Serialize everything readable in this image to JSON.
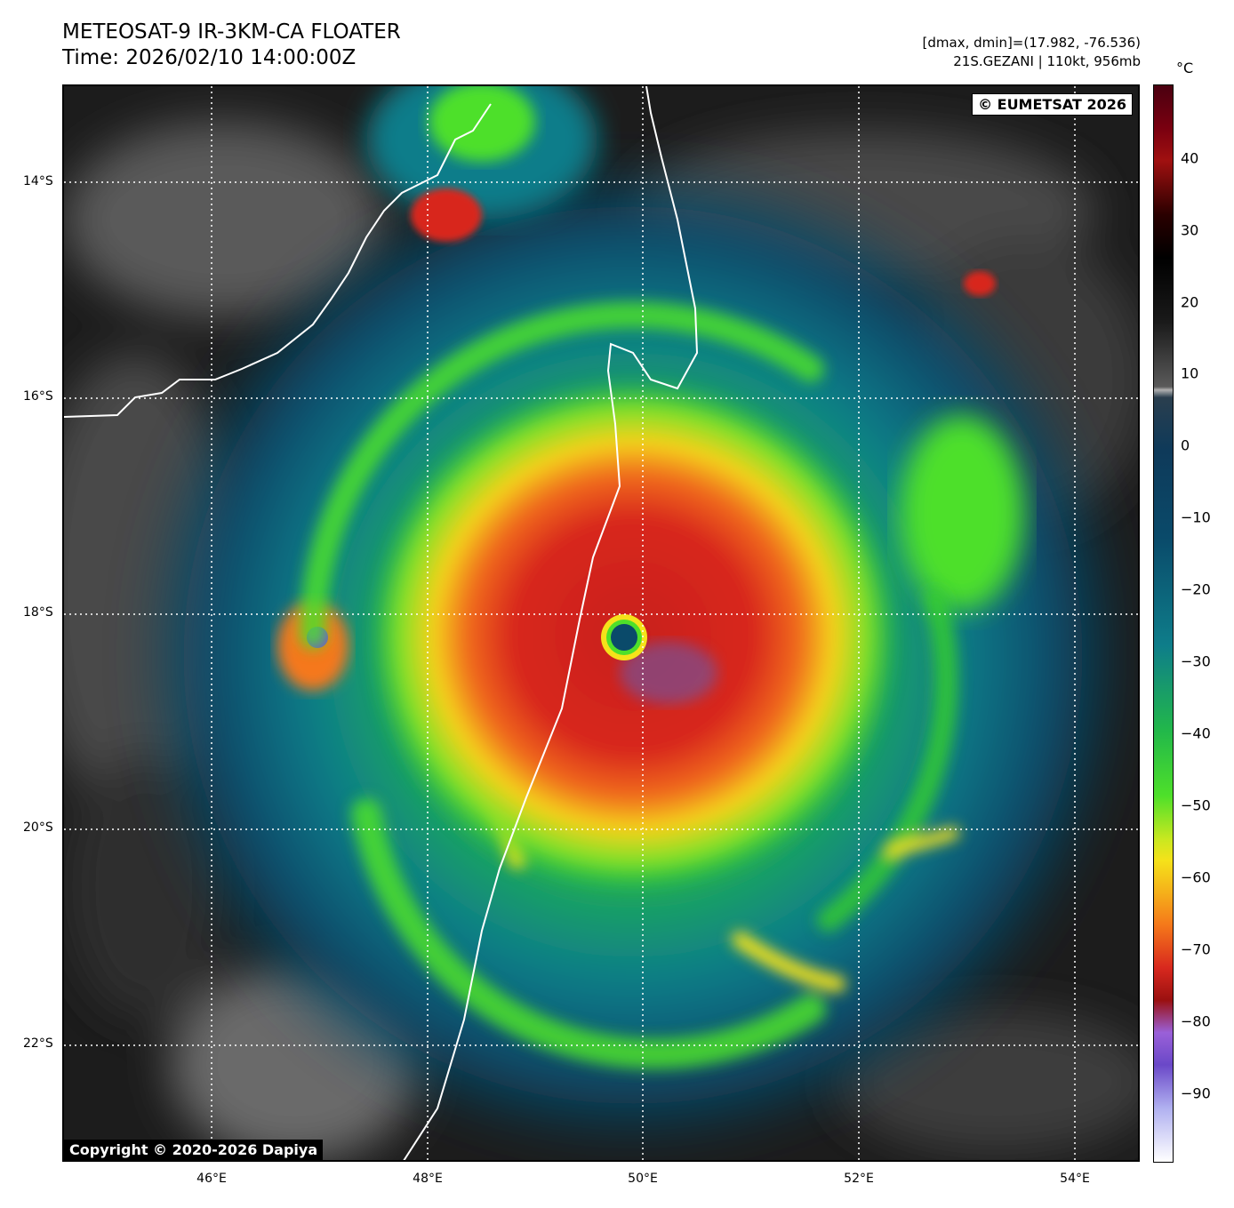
{
  "header": {
    "title_line1": "METEOSAT-9 IR-3KM-CA FLOATER",
    "title_line2": "Time: 2026/02/10 14:00:00Z",
    "meta_line1": "[dmax, dmin]=(17.982, -76.536)",
    "meta_line2": "21S.GEZANI | 110kt, 956mb"
  },
  "map": {
    "copyright_top": "© EUMETSAT 2026",
    "credit_bottom": "Copyright © 2020-2026 Dapiya",
    "lat_labels": [
      "14°S",
      "16°S",
      "18°S",
      "20°S",
      "22°S"
    ],
    "lon_labels": [
      "46°E",
      "48°E",
      "50°E",
      "52°E",
      "54°E"
    ],
    "storm": "21S.GEZANI",
    "colors": {
      "cold_land": "#1a1a1a",
      "warm_gray": "#6a6a6a",
      "cloud_blue": "#0a4a6a",
      "cloud_teal": "#0e7d8a",
      "cloud_green": "#4ee02a",
      "cloud_yellow": "#f5e21a",
      "cloud_orange": "#f5781a",
      "cloud_red": "#d8281e",
      "cloud_purple": "#7a4ad8",
      "coastline": "#ffffff",
      "gridline": "#ffffff"
    }
  },
  "colorbar": {
    "unit": "°C",
    "labels": [
      "40",
      "30",
      "20",
      "10",
      "0",
      "−10",
      "−20",
      "−30",
      "−40",
      "−50",
      "−60",
      "−70",
      "−80",
      "−90"
    ]
  }
}
